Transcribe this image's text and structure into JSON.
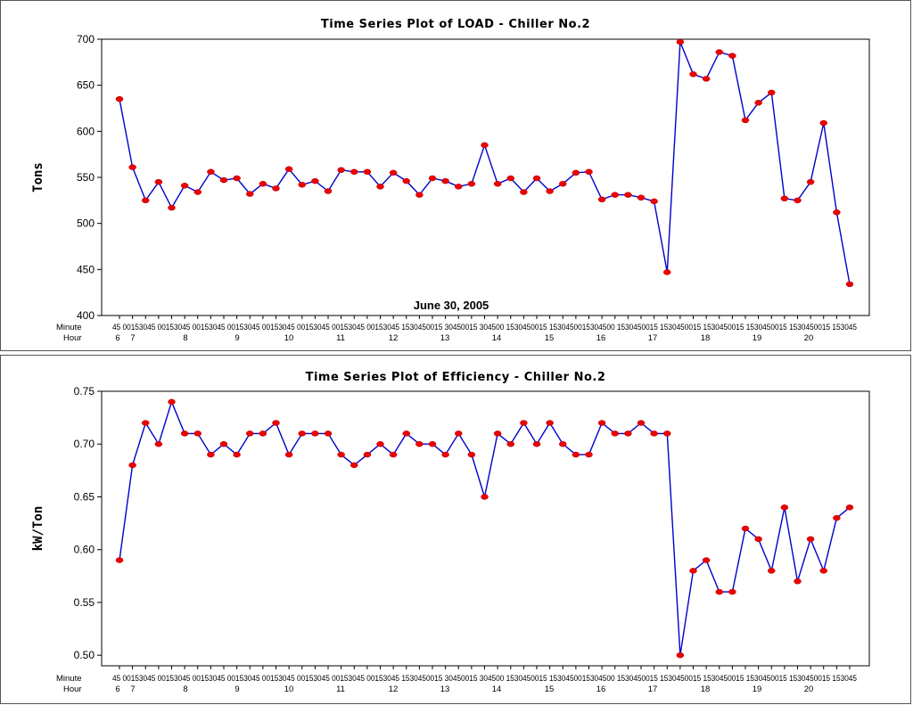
{
  "chart_data": [
    {
      "type": "line",
      "title": "Time Series Plot of LOAD - Chiller No.2",
      "ylabel": "Tons",
      "xlabel": "",
      "ylim": [
        400,
        700
      ],
      "yticks": [
        "400",
        "450",
        "500",
        "550",
        "600",
        "650",
        "700"
      ],
      "annotation": "June 30, 2005",
      "axis_rows": {
        "minute_label": "Minute",
        "hour_label": "Hour",
        "minute_text": "45 00153045 00153045 00153045 00153045 00153045 00153045 00153045 00153045 1530450015 30450015 304500 1530450015 1530450015304500 1530450015 1530450015 1530450015 1530450015 1530450015 153045",
        "hours": [
          "6",
          "7",
          "8",
          "9",
          "10",
          "11",
          "12",
          "13",
          "14",
          "15",
          "16",
          "17",
          "18",
          "19",
          "20"
        ]
      },
      "series": [
        {
          "values": [
            635,
            561,
            525,
            545,
            517,
            541,
            534,
            556,
            547,
            549,
            532,
            543,
            538,
            559,
            542,
            546,
            535,
            558,
            556,
            556,
            540,
            555,
            546,
            531,
            549,
            546,
            540,
            543,
            585,
            543,
            549,
            534,
            549,
            535,
            543,
            555,
            556,
            526,
            531,
            531,
            528,
            524,
            447,
            697,
            662,
            657,
            686,
            682,
            612,
            631,
            642,
            527,
            525,
            545,
            609,
            512,
            434
          ],
          "color": "#0000cc",
          "marker_color": "#ee0000"
        }
      ]
    },
    {
      "type": "line",
      "title": "Time Series Plot of Efficiency - Chiller No.2",
      "ylabel": "kW/Ton",
      "xlabel": "",
      "ylim": [
        0.49,
        0.75
      ],
      "yticks": [
        "0.50",
        "0.55",
        "0.60",
        "0.65",
        "0.70",
        "0.75"
      ],
      "axis_rows": {
        "minute_label": "Minute",
        "hour_label": "Hour",
        "minute_text": "45 00153045 00153045 00153045 00153045 00153045 00153045 00153045 00153045 1530450015 30450015 304500 1530450015 1530450015304500 1530450015 1530450015 1530450015 1530450015 1530450015 153045",
        "hours": [
          "6",
          "7",
          "8",
          "9",
          "10",
          "11",
          "12",
          "13",
          "14",
          "15",
          "16",
          "17",
          "18",
          "19",
          "20"
        ]
      },
      "series": [
        {
          "values": [
            0.59,
            0.68,
            0.72,
            0.7,
            0.74,
            0.71,
            0.71,
            0.69,
            0.7,
            0.69,
            0.71,
            0.71,
            0.72,
            0.69,
            0.71,
            0.71,
            0.71,
            0.69,
            0.68,
            0.69,
            0.7,
            0.69,
            0.71,
            0.7,
            0.7,
            0.69,
            0.71,
            0.69,
            0.65,
            0.71,
            0.7,
            0.72,
            0.7,
            0.72,
            0.7,
            0.69,
            0.69,
            0.72,
            0.71,
            0.71,
            0.72,
            0.71,
            0.71,
            0.5,
            0.58,
            0.59,
            0.56,
            0.56,
            0.62,
            0.61,
            0.58,
            0.64,
            0.57,
            0.61,
            0.58,
            0.63,
            0.64
          ],
          "color": "#0000cc",
          "marker_color": "#ee0000"
        }
      ]
    }
  ]
}
